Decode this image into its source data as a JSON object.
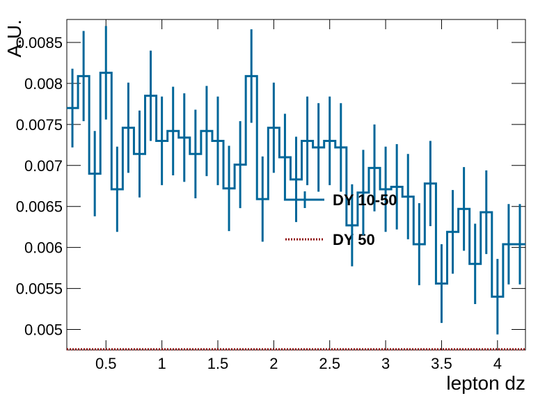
{
  "chart_data": {
    "type": "histogram",
    "xlabel": "lepton dz",
    "ylabel": "A.U.",
    "bins": [
      0.15,
      0.25,
      0.35,
      0.45,
      0.55,
      0.65,
      0.75,
      0.85,
      0.95,
      1.05,
      1.15,
      1.25,
      1.35,
      1.45,
      1.55,
      1.65,
      1.75,
      1.85,
      1.95,
      2.05,
      2.15,
      2.25,
      2.35,
      2.45,
      2.55,
      2.65,
      2.75,
      2.85,
      2.95,
      3.05,
      3.15,
      3.25,
      3.35,
      3.45,
      3.55,
      3.65,
      3.75,
      3.85,
      3.95,
      4.05,
      4.15,
      4.25
    ],
    "series": [
      {
        "name": "DY 10-50",
        "color": "#006699",
        "style": "solid",
        "values": [
          0.0077,
          0.00809,
          0.0069,
          0.00813,
          0.00671,
          0.00746,
          0.00714,
          0.00785,
          0.0073,
          0.00742,
          0.00734,
          0.00714,
          0.00742,
          0.0073,
          0.00672,
          0.00701,
          0.00809,
          0.00659,
          0.00746,
          0.0071,
          0.00683,
          0.0073,
          0.00722,
          0.0073,
          0.00722,
          0.00627,
          0.00667,
          0.00697,
          0.00671,
          0.00674,
          0.00662,
          0.00604,
          0.00678,
          0.00556,
          0.00619,
          0.00647,
          0.0058,
          0.00643,
          0.0054,
          0.00604,
          0.00604
        ],
        "errors": [
          0.00048,
          0.00055,
          0.00052,
          0.00057,
          0.00052,
          0.00055,
          0.00053,
          0.00055,
          0.00054,
          0.00054,
          0.00054,
          0.00054,
          0.00055,
          0.00054,
          0.00052,
          0.00053,
          0.00057,
          0.00052,
          0.00055,
          0.00053,
          0.00052,
          0.00054,
          0.00054,
          0.00054,
          0.00054,
          0.0005,
          0.00052,
          0.00053,
          0.00052,
          0.00052,
          0.00052,
          0.0005,
          0.00052,
          0.00048,
          0.00051,
          0.00051,
          0.00049,
          0.00051,
          0.00046,
          0.00049,
          0.00049
        ]
      },
      {
        "name": "DY 50",
        "color": "#8b0000",
        "style": "dotted",
        "values": [
          0,
          0,
          0,
          0,
          0,
          0,
          0,
          0,
          0,
          0,
          0,
          0,
          0,
          0,
          0,
          0,
          0,
          0,
          0,
          0,
          0,
          0,
          0,
          0,
          0,
          0,
          0,
          0,
          0,
          0,
          0,
          0,
          0,
          0,
          0,
          0,
          0,
          0,
          0,
          0,
          0
        ]
      }
    ],
    "xlim": [
      0.15,
      4.25
    ],
    "ylim": [
      0.00475,
      0.00878
    ],
    "xticks": [
      0.5,
      1,
      1.5,
      2,
      2.5,
      3,
      3.5,
      4
    ],
    "yticks": [
      0.005,
      0.0055,
      0.006,
      0.0065,
      0.007,
      0.0075,
      0.008,
      0.0085
    ]
  }
}
